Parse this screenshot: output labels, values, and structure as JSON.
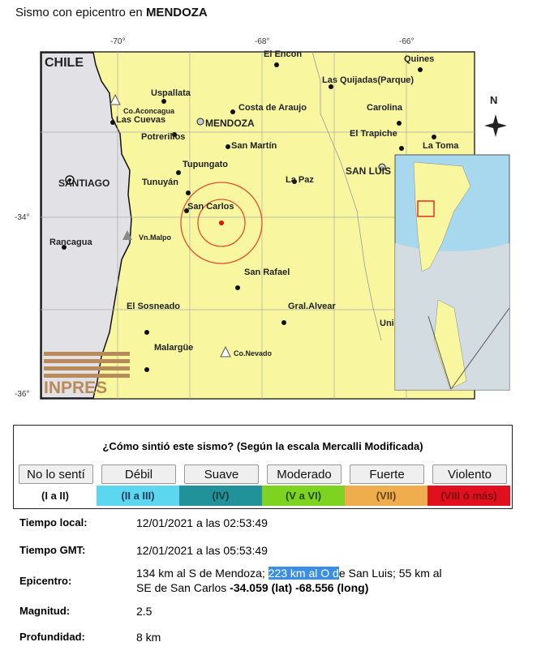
{
  "header": {
    "prefix": "Sismo con epicentro en",
    "place": "MENDOZA"
  },
  "map": {
    "ticks_lon": [
      "-70°",
      "-68°",
      "-66°"
    ],
    "ticks_lat": [
      "-34°",
      "-36°"
    ],
    "country": "CHILE",
    "north": "N",
    "logo": "INPRES",
    "places": [
      "El Encon",
      "Quines",
      "Las Quijadas(Parque)",
      "Uspallata",
      "Co.Aconcagua",
      "Costa de Araujo",
      "Carolina",
      "Las Cuevas",
      "MENDOZA",
      "Potrerillos",
      "El Trapiche",
      "La Toma",
      "San Martín",
      "Tupungato",
      "SANTIAGO",
      "SAN LUIS",
      "La Paz",
      "Tunuyán",
      "San Carlos",
      "Rancagua",
      "Vn.Malpo",
      "San Rafael",
      "Gral.Alvear",
      "El Sosneado",
      "Malargüe",
      "Co.Nevado",
      "Uni"
    ],
    "colors": {
      "land": "#f8f7a0",
      "chile": "#e2e2e6",
      "ocean": "#a8d8ee",
      "ring": "#e05030",
      "epicenter": "#e01010"
    }
  },
  "survey": {
    "question": "¿Cómo sintió este sismo? (Según la escala Mercalli Modificada)",
    "options": [
      {
        "label": "No lo sentí",
        "level": "(I a II)",
        "color": "#ffffff",
        "text": "#111111"
      },
      {
        "label": "Débil",
        "level": "(II a III)",
        "color": "#5dd6ef",
        "text": "#1a3a5a"
      },
      {
        "label": "Suave",
        "level": "(IV)",
        "color": "#22929a",
        "text": "#12423f"
      },
      {
        "label": "Moderado",
        "level": "(V a VI)",
        "color": "#7ed321",
        "text": "#1f4a0a"
      },
      {
        "label": "Fuerte",
        "level": "(VII)",
        "color": "#f0ad4e",
        "text": "#6a4410"
      },
      {
        "label": "Violento",
        "level": "(VIII ó más)",
        "color": "#e0101e",
        "text": "#7a0a10"
      }
    ]
  },
  "details": {
    "local_label": "Tiempo local:",
    "local": "12/01/2021 a las 02:53:49",
    "gmt_label": "Tiempo GMT:",
    "gmt": "12/01/2021 a las 05:53:49",
    "epi_label": "Epicentro:",
    "epi_a": "134 km al S de Mendoza; ",
    "epi_hl": "223 km al O d",
    "epi_b": "e San Luis; 55 km al",
    "epi_c": "SE de San Carlos ",
    "lat": "-34.059 (lat)",
    "lon": "-68.556 (long)",
    "mag_label": "Magnitud:",
    "mag": "2.5",
    "depth_label": "Profundidad:",
    "depth": "8 km"
  }
}
